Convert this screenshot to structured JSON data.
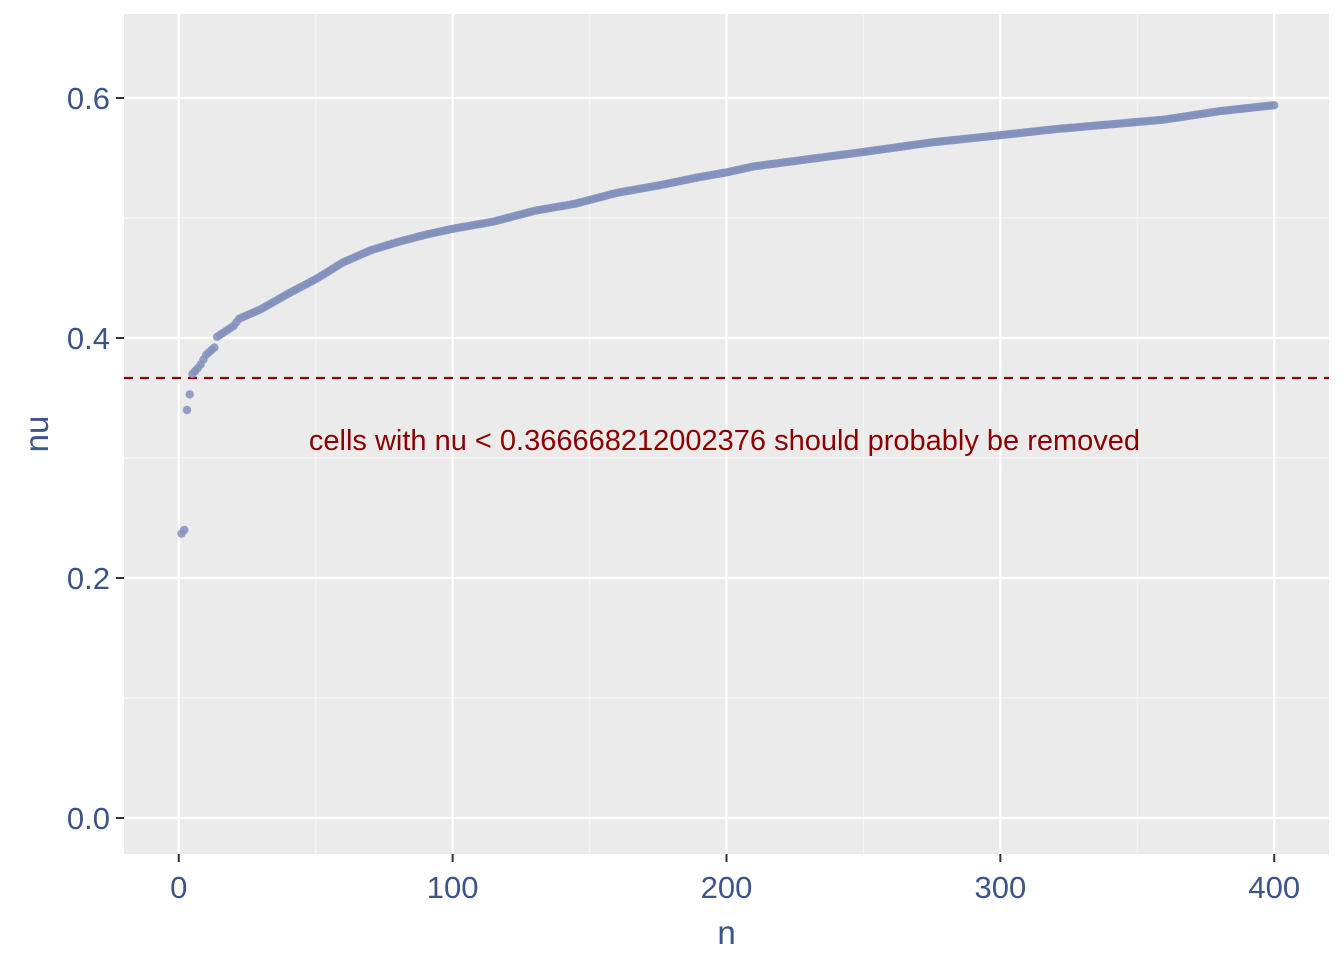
{
  "chart_data": {
    "type": "scatter",
    "xlabel": "n",
    "ylabel": "nu",
    "xlim": [
      -20,
      420
    ],
    "ylim": [
      -0.03,
      0.67
    ],
    "x_ticks": [
      0,
      100,
      200,
      300,
      400
    ],
    "x_tick_labels": [
      "0",
      "100",
      "200",
      "300",
      "400"
    ],
    "y_ticks": [
      0.0,
      0.2,
      0.4,
      0.6
    ],
    "y_tick_labels": [
      "0.0",
      "0.2",
      "0.4",
      "0.6"
    ],
    "x_minor_ticks": [
      50,
      150,
      250,
      350
    ],
    "y_minor_ticks": [
      0.1,
      0.3,
      0.5
    ],
    "grid": true,
    "threshold": {
      "value": 0.366668212002376,
      "style": "dashed",
      "color": "#8b0000",
      "label": "cells with nu < 0.366668212002376 should probably be removed",
      "label_x": 200,
      "label_y": 0.315
    },
    "series": [
      {
        "color": "#8390bd",
        "points_x_range": [
          1,
          400
        ],
        "anchors": [
          [
            1,
            0.237
          ],
          [
            2,
            0.24
          ],
          [
            3,
            0.34
          ],
          [
            4,
            0.353
          ],
          [
            5,
            0.37
          ],
          [
            7,
            0.375
          ],
          [
            8,
            0.378
          ],
          [
            10,
            0.386
          ],
          [
            13,
            0.392
          ],
          [
            14,
            0.401
          ],
          [
            20,
            0.41
          ],
          [
            22,
            0.416
          ],
          [
            30,
            0.424
          ],
          [
            40,
            0.437
          ],
          [
            50,
            0.449
          ],
          [
            60,
            0.463
          ],
          [
            70,
            0.473
          ],
          [
            80,
            0.48
          ],
          [
            90,
            0.486
          ],
          [
            100,
            0.491
          ],
          [
            115,
            0.497
          ],
          [
            130,
            0.506
          ],
          [
            145,
            0.512
          ],
          [
            160,
            0.521
          ],
          [
            175,
            0.527
          ],
          [
            190,
            0.534
          ],
          [
            200,
            0.538
          ],
          [
            210,
            0.543
          ],
          [
            230,
            0.549
          ],
          [
            250,
            0.555
          ],
          [
            275,
            0.563
          ],
          [
            300,
            0.569
          ],
          [
            320,
            0.574
          ],
          [
            340,
            0.578
          ],
          [
            360,
            0.582
          ],
          [
            380,
            0.589
          ],
          [
            400,
            0.594
          ]
        ]
      }
    ]
  },
  "colors": {
    "panel_bg": "#ebebeb",
    "grid_major": "#ffffff",
    "grid_minor": "#f5f5f5",
    "axis_text": "#3c5488",
    "points": "#8390bd",
    "threshold": "#8b0000"
  }
}
